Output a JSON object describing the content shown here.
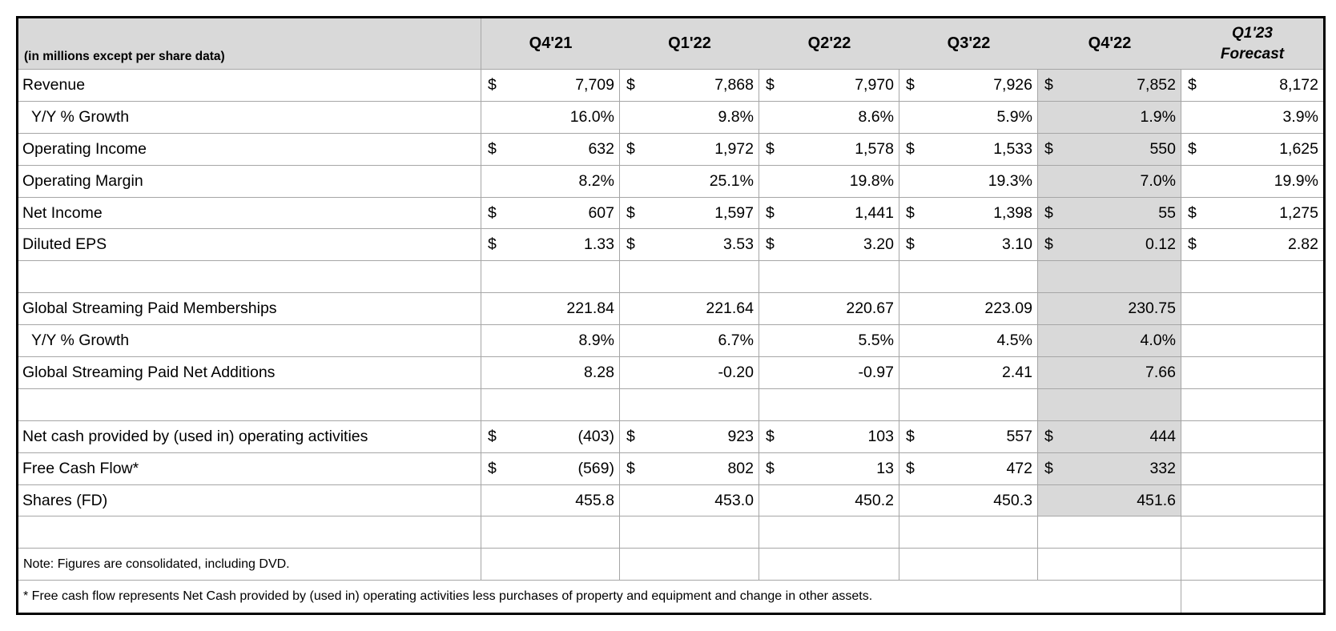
{
  "table": {
    "unit_note": "(in millions except per share data)",
    "currency_symbol": "$",
    "columns": [
      "Q4'21",
      "Q1'22",
      "Q2'22",
      "Q3'22",
      "Q4'22"
    ],
    "forecast_column": {
      "line1": "Q1'23",
      "line2": "Forecast"
    },
    "colors": {
      "header_bg": "#d9d9d9",
      "shaded_column_bg": "#d9d9d9",
      "grid_line": "#a6a6a6",
      "outer_border": "#000000"
    },
    "shaded_column_label": "Q4'22",
    "rows": [
      {
        "label": "Revenue",
        "type": "dollar",
        "indent": false,
        "values": [
          "7,709",
          "7,868",
          "7,970",
          "7,926",
          "7,852",
          "8,172"
        ]
      },
      {
        "label": "Y/Y % Growth",
        "type": "plain",
        "indent": true,
        "values": [
          "16.0%",
          "9.8%",
          "8.6%",
          "5.9%",
          "1.9%",
          "3.9%"
        ]
      },
      {
        "label": "Operating Income",
        "type": "dollar",
        "indent": false,
        "values": [
          "632",
          "1,972",
          "1,578",
          "1,533",
          "550",
          "1,625"
        ]
      },
      {
        "label": "Operating Margin",
        "type": "plain",
        "indent": false,
        "values": [
          "8.2%",
          "25.1%",
          "19.8%",
          "19.3%",
          "7.0%",
          "19.9%"
        ]
      },
      {
        "label": "Net Income",
        "type": "dollar",
        "indent": false,
        "values": [
          "607",
          "1,597",
          "1,441",
          "1,398",
          "55",
          "1,275"
        ]
      },
      {
        "label": "Diluted EPS",
        "type": "dollar",
        "indent": false,
        "values": [
          "1.33",
          "3.53",
          "3.20",
          "3.10",
          "0.12",
          "2.82"
        ]
      },
      {
        "label": "",
        "type": "blank",
        "indent": false,
        "values": [
          "",
          "",
          "",
          "",
          "",
          ""
        ]
      },
      {
        "label": "Global Streaming Paid Memberships",
        "type": "plain",
        "indent": false,
        "values": [
          "221.84",
          "221.64",
          "220.67",
          "223.09",
          "230.75",
          ""
        ]
      },
      {
        "label": "Y/Y % Growth",
        "type": "plain",
        "indent": true,
        "values": [
          "8.9%",
          "6.7%",
          "5.5%",
          "4.5%",
          "4.0%",
          ""
        ]
      },
      {
        "label": "Global Streaming Paid Net Additions",
        "type": "plain",
        "indent": false,
        "values": [
          "8.28",
          "-0.20",
          "-0.97",
          "2.41",
          "7.66",
          ""
        ]
      },
      {
        "label": "",
        "type": "blank",
        "indent": false,
        "values": [
          "",
          "",
          "",
          "",
          "",
          ""
        ]
      },
      {
        "label": "Net cash provided by (used in) operating activities",
        "type": "dollar",
        "indent": false,
        "values": [
          "(403)",
          "923",
          "103",
          "557",
          "444",
          ""
        ]
      },
      {
        "label": "Free Cash Flow*",
        "type": "dollar",
        "indent": false,
        "values": [
          "(569)",
          "802",
          "13",
          "472",
          "332",
          ""
        ]
      },
      {
        "label": "Shares (FD)",
        "type": "plain",
        "indent": false,
        "values": [
          "455.8",
          "453.0",
          "450.2",
          "450.3",
          "451.6",
          ""
        ]
      },
      {
        "label": "",
        "type": "blank-unshaded",
        "indent": false,
        "values": [
          "",
          "",
          "",
          "",
          "",
          ""
        ]
      },
      {
        "label": "Note: Figures are consolidated, including DVD.",
        "type": "note",
        "indent": false,
        "values": [
          "",
          "",
          "",
          "",
          "",
          ""
        ]
      },
      {
        "label": "* Free cash flow represents Net Cash provided by (used in) operating activities less purchases of property and equipment and change in other assets.",
        "type": "footnote",
        "indent": false,
        "values": [
          ""
        ]
      }
    ]
  }
}
